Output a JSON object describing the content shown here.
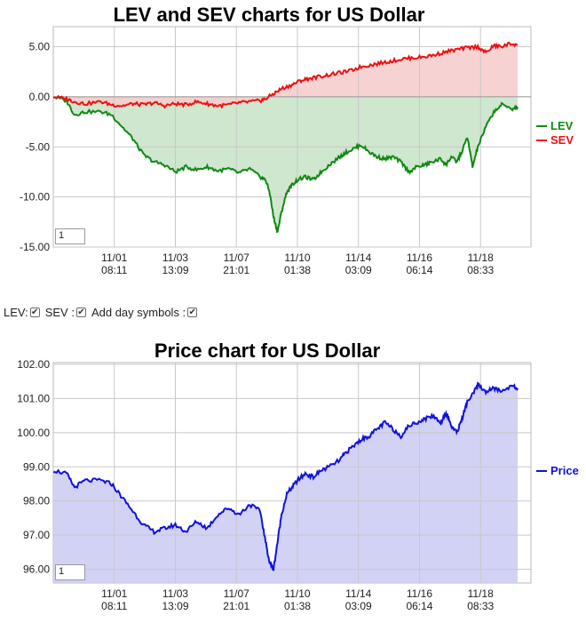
{
  "chart_data": [
    {
      "type": "area",
      "title": "LEV and SEV charts for US Dollar",
      "ylim": [
        -15,
        7
      ],
      "y_ticks": [
        "5.00",
        "0.00",
        "-5.00",
        "-10.00",
        "-15.00"
      ],
      "y_tick_values": [
        5,
        0,
        -5,
        -10,
        -15
      ],
      "x_range": [
        0,
        18
      ],
      "x_ticks": [
        {
          "x": 2.3,
          "date": "11/01",
          "time": "08:11"
        },
        {
          "x": 4.6,
          "date": "11/03",
          "time": "13:09"
        },
        {
          "x": 6.9,
          "date": "11/07",
          "time": "21:01"
        },
        {
          "x": 9.2,
          "date": "11/10",
          "time": "01:38"
        },
        {
          "x": 11.5,
          "date": "11/14",
          "time": "03:09"
        },
        {
          "x": 13.8,
          "date": "11/16",
          "time": "06:14"
        },
        {
          "x": 16.1,
          "date": "11/18",
          "time": "08:33"
        }
      ],
      "series": [
        {
          "name": "LEV",
          "color": "#118811",
          "fill": "#c9e4c9",
          "x": [
            0,
            0.5,
            0.8,
            1.2,
            1.8,
            2.2,
            2.6,
            3.0,
            3.4,
            3.8,
            4.2,
            4.6,
            5.0,
            5.4,
            5.8,
            6.2,
            6.6,
            7.0,
            7.4,
            7.8,
            8.0,
            8.15,
            8.3,
            8.45,
            8.6,
            8.8,
            9.0,
            9.2,
            9.5,
            9.8,
            10.1,
            10.4,
            10.8,
            11.0,
            11.3,
            11.6,
            11.9,
            12.2,
            12.5,
            12.8,
            13.1,
            13.4,
            13.7,
            14.0,
            14.3,
            14.6,
            14.8,
            15.0,
            15.2,
            15.4,
            15.6,
            15.8,
            16.0,
            16.3,
            16.6,
            16.9,
            17.3,
            17.5
          ],
          "y": [
            0,
            -0.4,
            -1.8,
            -1.5,
            -1.5,
            -1.8,
            -3.0,
            -4.2,
            -5.8,
            -6.5,
            -6.8,
            -7.5,
            -7.0,
            -7.3,
            -7.0,
            -7.4,
            -7.2,
            -7.6,
            -7.2,
            -8.0,
            -8.3,
            -9.5,
            -12.0,
            -13.5,
            -11.5,
            -9.5,
            -8.8,
            -8.3,
            -8.0,
            -8.3,
            -7.5,
            -6.8,
            -6.0,
            -5.6,
            -5.2,
            -4.8,
            -5.5,
            -6.0,
            -6.2,
            -6.0,
            -6.5,
            -7.5,
            -7.0,
            -6.8,
            -6.5,
            -6.2,
            -6.8,
            -6.0,
            -6.5,
            -5.5,
            -4.0,
            -7.0,
            -5.0,
            -3.0,
            -1.5,
            -0.8,
            -1.2,
            -1.0
          ]
        },
        {
          "name": "SEV",
          "color": "#ee1111",
          "fill": "#f6cdcd",
          "x": [
            0,
            0.5,
            0.8,
            1.2,
            1.8,
            2.2,
            2.6,
            3.0,
            3.4,
            3.8,
            4.2,
            4.6,
            5.0,
            5.4,
            5.8,
            6.2,
            6.6,
            7.0,
            7.4,
            7.8,
            8.0,
            8.3,
            8.6,
            9.0,
            9.3,
            9.6,
            10.0,
            10.4,
            10.8,
            11.2,
            11.6,
            12.0,
            12.4,
            12.8,
            13.2,
            13.6,
            14.0,
            14.4,
            14.8,
            15.2,
            15.6,
            16.0,
            16.3,
            16.6,
            16.9,
            17.2,
            17.5
          ],
          "y": [
            0,
            -0.2,
            -0.5,
            -0.7,
            -0.5,
            -0.8,
            -0.9,
            -0.7,
            -0.8,
            -0.6,
            -0.9,
            -0.7,
            -0.8,
            -0.5,
            -0.7,
            -0.9,
            -0.8,
            -0.6,
            -0.5,
            -0.4,
            -0.2,
            0.3,
            0.8,
            1.2,
            1.6,
            1.8,
            2.0,
            2.2,
            2.4,
            2.6,
            3.0,
            3.2,
            3.4,
            3.6,
            3.8,
            3.9,
            4.0,
            4.2,
            4.5,
            4.7,
            4.9,
            5.0,
            4.4,
            5.1,
            5.0,
            5.3,
            5.2
          ]
        }
      ],
      "legend": "right"
    },
    {
      "type": "area",
      "title": "Price chart for US Dollar",
      "ylim": [
        95.6,
        102.05
      ],
      "y_ticks": [
        "102.00",
        "101.00",
        "100.00",
        "99.00",
        "98.00",
        "97.00",
        "96.00"
      ],
      "y_tick_values": [
        102,
        101,
        100,
        99,
        98,
        97,
        96
      ],
      "x_range": [
        0,
        18
      ],
      "x_ticks": [
        {
          "x": 2.3,
          "date": "11/01",
          "time": "08:11"
        },
        {
          "x": 4.6,
          "date": "11/03",
          "time": "13:09"
        },
        {
          "x": 6.9,
          "date": "11/07",
          "time": "21:01"
        },
        {
          "x": 9.2,
          "date": "11/10",
          "time": "01:38"
        },
        {
          "x": 11.5,
          "date": "11/14",
          "time": "03:09"
        },
        {
          "x": 13.8,
          "date": "11/16",
          "time": "06:14"
        },
        {
          "x": 16.1,
          "date": "11/18",
          "time": "08:33"
        }
      ],
      "series": [
        {
          "name": "Price",
          "color": "#1111dd",
          "fill": "#cdcdf4",
          "x": [
            0,
            0.5,
            0.8,
            1.2,
            1.8,
            2.2,
            2.6,
            3.0,
            3.4,
            3.8,
            4.2,
            4.6,
            5.0,
            5.4,
            5.8,
            6.2,
            6.6,
            7.0,
            7.4,
            7.8,
            8.0,
            8.15,
            8.3,
            8.45,
            8.6,
            8.8,
            9.0,
            9.2,
            9.5,
            9.8,
            10.1,
            10.4,
            10.8,
            11.0,
            11.3,
            11.6,
            11.9,
            12.2,
            12.5,
            12.8,
            13.1,
            13.4,
            13.7,
            14.0,
            14.3,
            14.6,
            14.8,
            15.0,
            15.2,
            15.4,
            15.6,
            15.8,
            16.0,
            16.3,
            16.6,
            16.9,
            17.3,
            17.5
          ],
          "y": [
            98.9,
            98.8,
            98.4,
            98.6,
            98.6,
            98.5,
            98.1,
            97.7,
            97.3,
            97.1,
            97.2,
            97.3,
            97.1,
            97.4,
            97.2,
            97.6,
            97.8,
            97.6,
            97.9,
            97.7,
            96.8,
            96.2,
            96.0,
            96.8,
            97.6,
            98.2,
            98.4,
            98.6,
            98.8,
            98.7,
            98.9,
            99.0,
            99.2,
            99.4,
            99.6,
            99.8,
            99.9,
            100.1,
            100.3,
            100.1,
            99.9,
            100.2,
            100.3,
            100.4,
            100.5,
            100.3,
            100.6,
            100.2,
            100.0,
            100.4,
            100.9,
            101.1,
            101.4,
            101.2,
            101.3,
            101.2,
            101.4,
            101.3
          ]
        }
      ],
      "legend": "right"
    }
  ],
  "controls": {
    "lev_label": "LEV:",
    "sev_label": "SEV :",
    "day_symbols_label": "Add day symbols :",
    "check_mark": "✔"
  },
  "lev_chart": {
    "zoom_value": "1"
  },
  "price_chart": {
    "zoom_value": "1"
  }
}
